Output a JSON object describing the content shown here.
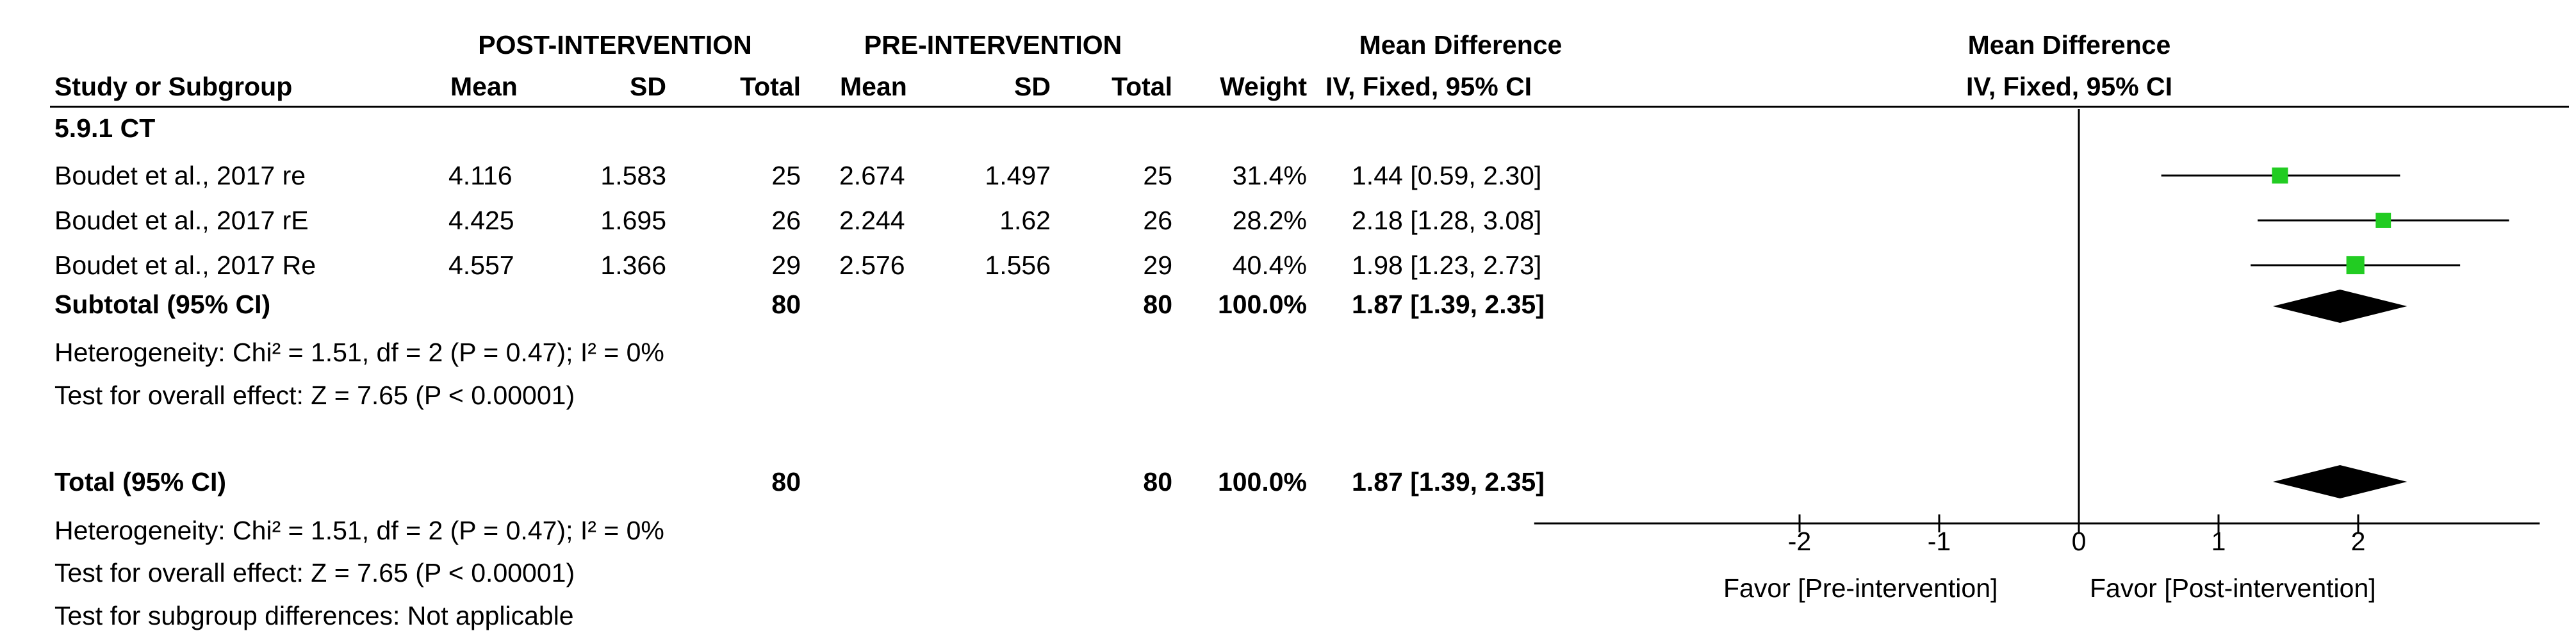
{
  "header": {
    "post_group": "POST-INTERVENTION",
    "pre_group": "PRE-INTERVENTION",
    "md_top": "Mean Difference",
    "study_col": "Study or Subgroup",
    "mean_col": "Mean",
    "sd_col": "SD",
    "total_col": "Total",
    "weight_col": "Weight",
    "md_method": "IV, Fixed, 95% CI",
    "plot_top": "Mean Difference",
    "plot_method": "IV, Fixed, 95% CI"
  },
  "subgroup": {
    "label": "5.9.1 CT",
    "subtotal_label": "Subtotal (95% CI)",
    "subtotal_post_total": "80",
    "subtotal_pre_total": "80",
    "subtotal_weight": "100.0%",
    "subtotal_ci": "1.87 [1.39, 2.35]",
    "heterogeneity": "Heterogeneity: Chi² = 1.51, df = 2 (P = 0.47); I² = 0%",
    "overall_effect": "Test for overall effect: Z = 7.65 (P < 0.00001)"
  },
  "total": {
    "label": "Total (95% CI)",
    "post_total": "80",
    "pre_total": "80",
    "weight": "100.0%",
    "ci": "1.87 [1.39, 2.35]",
    "heterogeneity": "Heterogeneity: Chi² = 1.51, df = 2 (P = 0.47); I² = 0%",
    "overall_effect": "Test for overall effect: Z = 7.65 (P < 0.00001)",
    "subgroup_diff": "Test for subgroup differences: Not applicable"
  },
  "rows": [
    {
      "study": "Boudet et al., 2017 re",
      "post_mean": "4.116",
      "post_sd": "1.583",
      "post_total": "25",
      "pre_mean": "2.674",
      "pre_sd": "1.497",
      "pre_total": "25",
      "weight": "31.4%",
      "ci": "1.44 [0.59, 2.30]"
    },
    {
      "study": "Boudet et al., 2017 rE",
      "post_mean": "4.425",
      "post_sd": "1.695",
      "post_total": "26",
      "pre_mean": "2.244",
      "pre_sd": "1.62",
      "pre_total": "26",
      "weight": "28.2%",
      "ci": "2.18 [1.28, 3.08]"
    },
    {
      "study": "Boudet et al., 2017 Re",
      "post_mean": "4.557",
      "post_sd": "1.366",
      "post_total": "29",
      "pre_mean": "2.576",
      "pre_sd": "1.556",
      "pre_total": "29",
      "weight": "40.4%",
      "ci": "1.98 [1.23, 2.73]"
    }
  ],
  "axis": {
    "tick_labels": [
      "-2",
      "-1",
      "0",
      "1",
      "2"
    ],
    "favor_left": "Favor [Pre-intervention]",
    "favor_right": "Favor [Post-intervention]"
  },
  "colors": {
    "study_marker": "#22cc22",
    "diamond": "#000000"
  },
  "chart_data": {
    "type": "forest",
    "title": "Mean Difference",
    "subtitle": "IV, Fixed, 95% CI",
    "xlim": [
      -3.9,
      3.3
    ],
    "xticks": [
      -2,
      -1,
      0,
      1,
      2
    ],
    "studies": [
      {
        "name": "Boudet et al., 2017 re",
        "md": 1.44,
        "lo": 0.59,
        "hi": 2.3,
        "weight": 31.4
      },
      {
        "name": "Boudet et al., 2017 rE",
        "md": 2.18,
        "lo": 1.28,
        "hi": 3.08,
        "weight": 28.2
      },
      {
        "name": "Boudet et al., 2017 Re",
        "md": 1.98,
        "lo": 1.23,
        "hi": 2.73,
        "weight": 40.4
      }
    ],
    "subtotal": {
      "md": 1.87,
      "lo": 1.39,
      "hi": 2.35
    },
    "total": {
      "md": 1.87,
      "lo": 1.39,
      "hi": 2.35
    }
  }
}
